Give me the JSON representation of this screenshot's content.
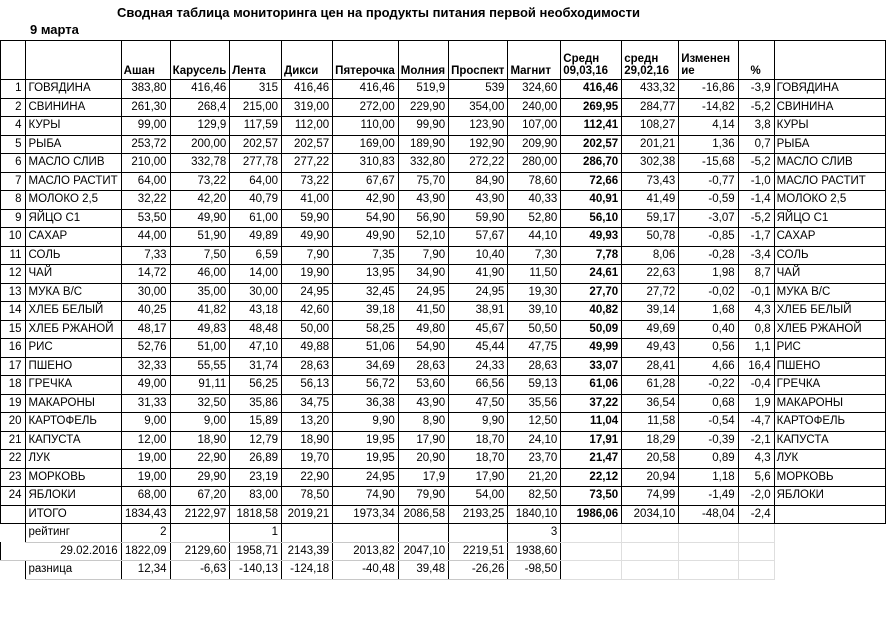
{
  "title": "Сводная таблица мониторинга цен на продукты питания первой необходимости",
  "date_label": "9 марта",
  "table": {
    "store_headers": [
      "Ашан",
      "Карусель",
      "Лента",
      "Дикси",
      "Пятерочка",
      "Молния",
      "Проспект",
      "Магнит"
    ],
    "avg_current_header": [
      "Средн",
      "09,03,16"
    ],
    "avg_prev_header": [
      "средн",
      "29,02,16"
    ],
    "change_header": [
      "Изменен",
      "ие"
    ],
    "percent_header": "%",
    "rows": [
      {
        "num": "1",
        "name": "ГОВЯДИНА",
        "prices": [
          "383,80",
          "416,46",
          "315",
          "416,46",
          "416,46",
          "519,9",
          "539",
          "324,60"
        ],
        "avg": "416,46",
        "avg_prev": "433,32",
        "change": "-16,86",
        "pct": "-3,9"
      },
      {
        "num": "2",
        "name": "СВИНИНА",
        "prices": [
          "261,30",
          "268,4",
          "215,00",
          "319,00",
          "272,00",
          "229,90",
          "354,00",
          "240,00"
        ],
        "avg": "269,95",
        "avg_prev": "284,77",
        "change": "-14,82",
        "pct": "-5,2"
      },
      {
        "num": "4",
        "name": "КУРЫ",
        "prices": [
          "99,00",
          "129,9",
          "117,59",
          "112,00",
          "110,00",
          "99,90",
          "123,90",
          "107,00"
        ],
        "avg": "112,41",
        "avg_prev": "108,27",
        "change": "4,14",
        "pct": "3,8"
      },
      {
        "num": "5",
        "name": "РЫБА",
        "prices": [
          "253,72",
          "200,00",
          "202,57",
          "202,57",
          "169,00",
          "189,90",
          "192,90",
          "209,90"
        ],
        "avg": "202,57",
        "avg_prev": "201,21",
        "change": "1,36",
        "pct": "0,7"
      },
      {
        "num": "6",
        "name": "МАСЛО СЛИВ",
        "prices": [
          "210,00",
          "332,78",
          "277,78",
          "277,22",
          "310,83",
          "332,80",
          "272,22",
          "280,00"
        ],
        "avg": "286,70",
        "avg_prev": "302,38",
        "change": "-15,68",
        "pct": "-5,2"
      },
      {
        "num": "7",
        "name": "МАСЛО РАСТИТ",
        "prices": [
          "64,00",
          "73,22",
          "64,00",
          "73,22",
          "67,67",
          "75,70",
          "84,90",
          "78,60"
        ],
        "avg": "72,66",
        "avg_prev": "73,43",
        "change": "-0,77",
        "pct": "-1,0"
      },
      {
        "num": "8",
        "name": "МОЛОКО 2,5",
        "prices": [
          "32,22",
          "42,20",
          "40,79",
          "41,00",
          "42,90",
          "43,90",
          "43,90",
          "40,33"
        ],
        "avg": "40,91",
        "avg_prev": "41,49",
        "change": "-0,59",
        "pct": "-1,4"
      },
      {
        "num": "9",
        "name": "ЯЙЦО С1",
        "prices": [
          "53,50",
          "49,90",
          "61,00",
          "59,90",
          "54,90",
          "56,90",
          "59,90",
          "52,80"
        ],
        "avg": "56,10",
        "avg_prev": "59,17",
        "change": "-3,07",
        "pct": "-5,2"
      },
      {
        "num": "10",
        "name": "САХАР",
        "prices": [
          "44,00",
          "51,90",
          "49,89",
          "49,90",
          "49,90",
          "52,10",
          "57,67",
          "44,10"
        ],
        "avg": "49,93",
        "avg_prev": "50,78",
        "change": "-0,85",
        "pct": "-1,7"
      },
      {
        "num": "11",
        "name": "СОЛЬ",
        "prices": [
          "7,33",
          "7,50",
          "6,59",
          "7,90",
          "7,35",
          "7,90",
          "10,40",
          "7,30"
        ],
        "avg": "7,78",
        "avg_prev": "8,06",
        "change": "-0,28",
        "pct": "-3,4"
      },
      {
        "num": "12",
        "name": "ЧАЙ",
        "prices": [
          "14,72",
          "46,00",
          "14,00",
          "19,90",
          "13,95",
          "34,90",
          "41,90",
          "11,50"
        ],
        "avg": "24,61",
        "avg_prev": "22,63",
        "change": "1,98",
        "pct": "8,7"
      },
      {
        "num": "13",
        "name": "МУКА В/С",
        "prices": [
          "30,00",
          "35,00",
          "30,00",
          "24,95",
          "32,45",
          "24,95",
          "24,95",
          "19,30"
        ],
        "avg": "27,70",
        "avg_prev": "27,72",
        "change": "-0,02",
        "pct": "-0,1"
      },
      {
        "num": "14",
        "name": "ХЛЕБ БЕЛЫЙ",
        "prices": [
          "40,25",
          "41,82",
          "43,18",
          "42,60",
          "39,18",
          "41,50",
          "38,91",
          "39,10"
        ],
        "avg": "40,82",
        "avg_prev": "39,14",
        "change": "1,68",
        "pct": "4,3"
      },
      {
        "num": "15",
        "name": "ХЛЕБ РЖАНОЙ",
        "prices": [
          "48,17",
          "49,83",
          "48,48",
          "50,00",
          "58,25",
          "49,80",
          "45,67",
          "50,50"
        ],
        "avg": "50,09",
        "avg_prev": "49,69",
        "change": "0,40",
        "pct": "0,8"
      },
      {
        "num": "16",
        "name": "РИС",
        "prices": [
          "52,76",
          "51,00",
          "47,10",
          "49,88",
          "51,06",
          "54,90",
          "45,44",
          "47,75"
        ],
        "avg": "49,99",
        "avg_prev": "49,43",
        "change": "0,56",
        "pct": "1,1"
      },
      {
        "num": "17",
        "name": "ПШЕНО",
        "prices": [
          "32,33",
          "55,55",
          "31,74",
          "28,63",
          "34,69",
          "28,63",
          "24,33",
          "28,63"
        ],
        "avg": "33,07",
        "avg_prev": "28,41",
        "change": "4,66",
        "pct": "16,4"
      },
      {
        "num": "18",
        "name": "ГРЕЧКА",
        "prices": [
          "49,00",
          "91,11",
          "56,25",
          "56,13",
          "56,72",
          "53,60",
          "66,56",
          "59,13"
        ],
        "avg": "61,06",
        "avg_prev": "61,28",
        "change": "-0,22",
        "pct": "-0,4"
      },
      {
        "num": "19",
        "name": "МАКАРОНЫ",
        "prices": [
          "31,33",
          "32,50",
          "35,86",
          "34,75",
          "36,38",
          "43,90",
          "47,50",
          "35,56"
        ],
        "avg": "37,22",
        "avg_prev": "36,54",
        "change": "0,68",
        "pct": "1,9"
      },
      {
        "num": "20",
        "name": "КАРТОФЕЛЬ",
        "prices": [
          "9,00",
          "9,00",
          "15,89",
          "13,20",
          "9,90",
          "8,90",
          "9,90",
          "12,50"
        ],
        "avg": "11,04",
        "avg_prev": "11,58",
        "change": "-0,54",
        "pct": "-4,7"
      },
      {
        "num": "21",
        "name": "КАПУСТА",
        "prices": [
          "12,00",
          "18,90",
          "12,79",
          "18,90",
          "19,95",
          "17,90",
          "18,70",
          "24,10"
        ],
        "avg": "17,91",
        "avg_prev": "18,29",
        "change": "-0,39",
        "pct": "-2,1"
      },
      {
        "num": "22",
        "name": "ЛУК",
        "prices": [
          "19,00",
          "22,90",
          "26,89",
          "19,70",
          "19,95",
          "20,90",
          "18,70",
          "23,70"
        ],
        "avg": "21,47",
        "avg_prev": "20,58",
        "change": "0,89",
        "pct": "4,3"
      },
      {
        "num": "23",
        "name": "МОРКОВЬ",
        "prices": [
          "19,00",
          "29,90",
          "23,19",
          "22,90",
          "24,95",
          "17,9",
          "17,90",
          "21,20"
        ],
        "avg": "22,12",
        "avg_prev": "20,94",
        "change": "1,18",
        "pct": "5,6"
      },
      {
        "num": "24",
        "name": "ЯБЛОКИ",
        "prices": [
          "68,00",
          "67,20",
          "83,00",
          "78,50",
          "74,90",
          "79,90",
          "54,00",
          "82,50"
        ],
        "avg": "73,50",
        "avg_prev": "74,99",
        "change": "-1,49",
        "pct": "-2,0"
      }
    ],
    "total_row": {
      "label": "ИТОГО",
      "prices": [
        "1834,43",
        "2122,97",
        "1818,58",
        "2019,21",
        "1973,34",
        "2086,58",
        "2193,25",
        "1840,10"
      ],
      "avg": "1986,06",
      "avg_prev": "2034,10",
      "change": "-48,04",
      "pct": "-2,4"
    },
    "rating_row": {
      "label": "рейтинг",
      "values": [
        "2",
        "",
        "1",
        "",
        "",
        "",
        "",
        "3"
      ]
    },
    "prev_date_row": {
      "label": "29.02.2016",
      "values": [
        "1822,09",
        "2129,60",
        "1958,71",
        "2143,39",
        "2013,82",
        "2047,10",
        "2219,51",
        "1938,60"
      ]
    },
    "diff_row": {
      "label": "разница",
      "values": [
        "12,34",
        "-6,63",
        "-140,13",
        "-124,18",
        "-40,48",
        "39,48",
        "-26,26",
        "-98,50"
      ]
    }
  }
}
